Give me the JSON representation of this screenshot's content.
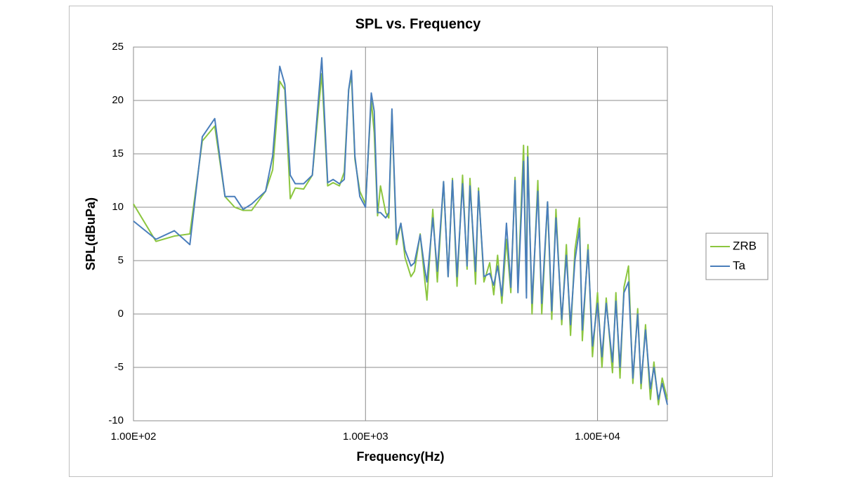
{
  "chart_data": {
    "type": "line",
    "title": "SPL vs. Frequency",
    "x_label": "Frequency(Hz)",
    "y_label": "SPL(dBuPa)",
    "log_x": true,
    "grid": true,
    "legend": "right",
    "xlim": [
      100,
      20000
    ],
    "xticks": [
      {
        "value": 100,
        "label": "1.00E+02"
      },
      {
        "value": 1000,
        "label": "1.00E+03"
      },
      {
        "value": 10000,
        "label": "1.00E+04"
      }
    ],
    "ylim": [
      -10,
      25
    ],
    "yticks": [
      -10,
      -5,
      0,
      5,
      10,
      15,
      20,
      25
    ],
    "x": [
      100,
      125,
      150,
      175,
      198,
      224,
      248,
      273,
      297,
      323,
      371,
      398,
      427,
      449,
      474,
      498,
      541,
      590,
      648,
      687,
      725,
      772,
      810,
      846,
      870,
      900,
      945,
      1000,
      1059,
      1090,
      1127,
      1160,
      1222,
      1260,
      1300,
      1360,
      1420,
      1480,
      1570,
      1625,
      1720,
      1800,
      1840,
      1950,
      2040,
      2170,
      2270,
      2370,
      2480,
      2620,
      2740,
      2820,
      2980,
      3070,
      3240,
      3430,
      3570,
      3710,
      3870,
      4050,
      4230,
      4410,
      4540,
      4800,
      4940,
      5000,
      5220,
      5530,
      5750,
      6090,
      6350,
      6620,
      7010,
      7340,
      7650,
      7990,
      8360,
      8600,
      9100,
      9510,
      10000,
      10450,
      10900,
      11600,
      12000,
      12500,
      13000,
      13600,
      14200,
      14900,
      15400,
      16100,
      16900,
      17500,
      18300,
      19000,
      20000
    ],
    "series": [
      {
        "name": "ZRB",
        "color": "#8cc63f",
        "values": [
          10.3,
          6.8,
          7.3,
          7.5,
          16.2,
          17.6,
          11,
          10,
          9.7,
          9.7,
          11.5,
          13.5,
          21.8,
          21,
          10.8,
          11.8,
          11.7,
          13,
          22.5,
          12,
          12.3,
          12,
          13.3,
          21,
          22.3,
          14.5,
          11.5,
          10.3,
          20,
          17,
          9.2,
          12,
          9.5,
          9,
          19,
          6.5,
          8.5,
          5.3,
          3.5,
          4,
          7.5,
          3.2,
          1.3,
          9.8,
          3,
          12.4,
          3.5,
          12.7,
          2.6,
          13,
          4.2,
          12.7,
          2.8,
          11.8,
          3,
          4.8,
          1.8,
          5.5,
          1,
          7,
          2,
          12.8,
          2.5,
          15.8,
          2,
          15.7,
          0,
          12.5,
          0,
          10.5,
          -0.5,
          9.8,
          -1,
          6.5,
          -2,
          6,
          9,
          -2.5,
          6.5,
          -4,
          2,
          -5,
          1.5,
          -5.5,
          2,
          -6,
          2.5,
          4.5,
          -6.5,
          0.5,
          -7,
          -1,
          -8,
          -4.5,
          -8.5,
          -6,
          -8
        ]
      },
      {
        "name": "Ta",
        "color": "#4a7ebb",
        "values": [
          8.7,
          7,
          7.8,
          6.5,
          16.6,
          18.3,
          11,
          11,
          9.8,
          10.3,
          11.5,
          14.8,
          23.2,
          21.5,
          13,
          12.2,
          12.2,
          13,
          24,
          12.3,
          12.6,
          12.2,
          12.6,
          21,
          22.8,
          14.8,
          11,
          10,
          20.7,
          19,
          9.5,
          9.5,
          9,
          9.5,
          19.2,
          7,
          8.5,
          6,
          4.5,
          4.8,
          7.4,
          4.2,
          3,
          9,
          4,
          12.4,
          3.5,
          12.5,
          3.5,
          12.2,
          4.5,
          12,
          4,
          11.5,
          3.5,
          3.8,
          2.7,
          4.5,
          1.7,
          8.5,
          2.5,
          12.5,
          2,
          14.3,
          1.5,
          14.7,
          1,
          11.5,
          1,
          10.5,
          0.3,
          9,
          -0.5,
          5.5,
          -1,
          5,
          8,
          -1.5,
          6,
          -3,
          1,
          -4,
          1,
          -4.5,
          1.2,
          -5,
          2,
          3,
          -6,
          0,
          -6.5,
          -1.5,
          -7,
          -5,
          -8,
          -6.5,
          -8.5
        ]
      }
    ]
  }
}
